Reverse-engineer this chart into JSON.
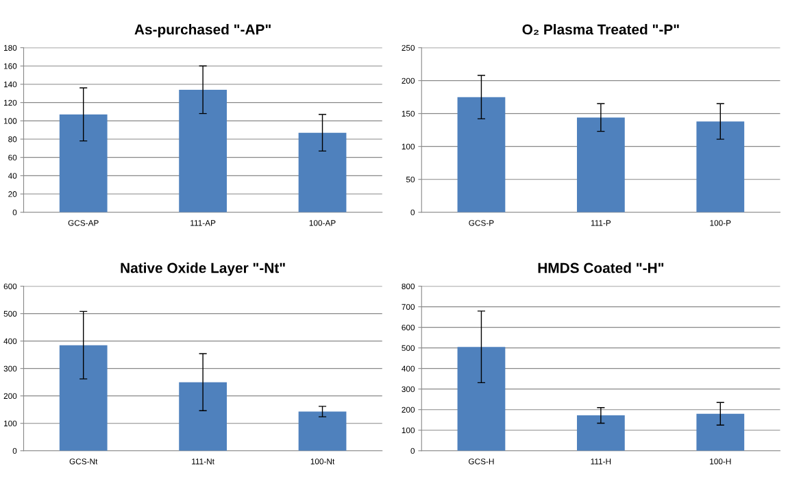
{
  "chart_data": [
    {
      "type": "bar",
      "title": "As-purchased \"-AP\"",
      "categories": [
        "GCS-AP",
        "111-AP",
        "100-AP"
      ],
      "values": [
        107,
        134,
        87
      ],
      "errors": [
        29,
        26,
        20
      ],
      "color": "#4f81bd",
      "ylim": [
        0,
        180
      ],
      "yticks": [
        0,
        20,
        40,
        60,
        80,
        100,
        120,
        140,
        160,
        180
      ],
      "grid": "y"
    },
    {
      "type": "bar",
      "title": "O₂ Plasma Treated \"-P\"",
      "categories": [
        "GCS-P",
        "111-P",
        "100-P"
      ],
      "values": [
        175,
        144,
        138
      ],
      "errors": [
        33,
        21,
        27
      ],
      "color": "#4f81bd",
      "ylim": [
        0,
        250
      ],
      "yticks": [
        0,
        50,
        100,
        150,
        200,
        250
      ],
      "grid": "y"
    },
    {
      "type": "bar",
      "title": "Native Oxide Layer \"-Nt\"",
      "categories": [
        "GCS-Nt",
        "111-Nt",
        "100-Nt"
      ],
      "values": [
        385,
        250,
        143
      ],
      "errors": [
        123,
        104,
        19
      ],
      "color": "#4f81bd",
      "ylim": [
        0,
        600
      ],
      "yticks": [
        0,
        100,
        200,
        300,
        400,
        500,
        600
      ],
      "grid": "y"
    },
    {
      "type": "bar",
      "title": "HMDS Coated \"-H\"",
      "categories": [
        "GCS-H",
        "111-H",
        "100-H"
      ],
      "values": [
        505,
        172,
        180
      ],
      "errors": [
        174,
        38,
        55
      ],
      "color": "#4f81bd",
      "ylim": [
        0,
        800
      ],
      "yticks": [
        0,
        100,
        200,
        300,
        400,
        500,
        600,
        700,
        800
      ],
      "grid": "y"
    }
  ]
}
